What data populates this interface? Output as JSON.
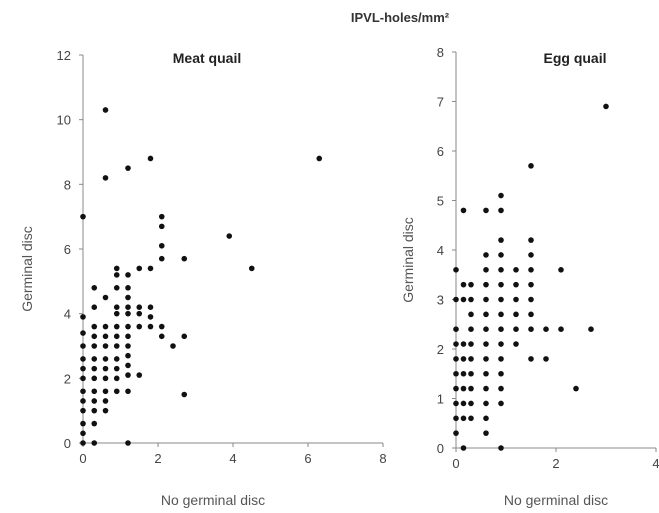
{
  "figure": {
    "title": "IPVL-holes/mm²"
  },
  "chart_data": [
    {
      "type": "scatter",
      "title": "Meat quail",
      "xlabel": "No germinal disc",
      "ylabel": "Germinal disc",
      "xlim": [
        0,
        8
      ],
      "ylim": [
        0,
        12
      ],
      "xticks": [
        0,
        2,
        4,
        6,
        8
      ],
      "yticks": [
        0,
        2,
        4,
        6,
        8,
        10,
        12
      ],
      "grid": false,
      "marker_color": "#111111",
      "points": [
        [
          0,
          0
        ],
        [
          0,
          0.3
        ],
        [
          0,
          0.6
        ],
        [
          0,
          1
        ],
        [
          0,
          1.3
        ],
        [
          0,
          1.6
        ],
        [
          0,
          2
        ],
        [
          0,
          2.3
        ],
        [
          0,
          2.6
        ],
        [
          0,
          3
        ],
        [
          0,
          3.4
        ],
        [
          0,
          3.9
        ],
        [
          0,
          7
        ],
        [
          0.3,
          0
        ],
        [
          0.3,
          0.6
        ],
        [
          0.3,
          1
        ],
        [
          0.3,
          1.3
        ],
        [
          0.3,
          1.6
        ],
        [
          0.3,
          2
        ],
        [
          0.3,
          2.3
        ],
        [
          0.3,
          2.6
        ],
        [
          0.3,
          3
        ],
        [
          0.3,
          3.3
        ],
        [
          0.3,
          3.6
        ],
        [
          0.3,
          4.2
        ],
        [
          0.3,
          4.8
        ],
        [
          0.6,
          1
        ],
        [
          0.6,
          1.3
        ],
        [
          0.6,
          1.6
        ],
        [
          0.6,
          2
        ],
        [
          0.6,
          2.3
        ],
        [
          0.6,
          2.6
        ],
        [
          0.6,
          3
        ],
        [
          0.6,
          3.3
        ],
        [
          0.6,
          3.6
        ],
        [
          0.6,
          4.5
        ],
        [
          0.6,
          8.2
        ],
        [
          0.6,
          10.3
        ],
        [
          0.9,
          1.6
        ],
        [
          0.9,
          2
        ],
        [
          0.9,
          2.3
        ],
        [
          0.9,
          2.6
        ],
        [
          0.9,
          3
        ],
        [
          0.9,
          3.3
        ],
        [
          0.9,
          3.6
        ],
        [
          0.9,
          4
        ],
        [
          0.9,
          4.2
        ],
        [
          0.9,
          4.8
        ],
        [
          0.9,
          5.2
        ],
        [
          0.9,
          5.4
        ],
        [
          1.2,
          0
        ],
        [
          1.2,
          1.6
        ],
        [
          1.2,
          2.1
        ],
        [
          1.2,
          2.4
        ],
        [
          1.2,
          2.7
        ],
        [
          1.2,
          3
        ],
        [
          1.2,
          3.3
        ],
        [
          1.2,
          3.6
        ],
        [
          1.2,
          4
        ],
        [
          1.2,
          4.2
        ],
        [
          1.2,
          4.5
        ],
        [
          1.2,
          4.8
        ],
        [
          1.2,
          5.2
        ],
        [
          1.2,
          8.5
        ],
        [
          1.5,
          2.1
        ],
        [
          1.5,
          3.6
        ],
        [
          1.5,
          4
        ],
        [
          1.5,
          4.2
        ],
        [
          1.5,
          5.4
        ],
        [
          1.8,
          3.6
        ],
        [
          1.8,
          3.9
        ],
        [
          1.8,
          4.2
        ],
        [
          1.8,
          5.4
        ],
        [
          1.8,
          8.8
        ],
        [
          2.1,
          3.3
        ],
        [
          2.1,
          3.6
        ],
        [
          2.1,
          5.7
        ],
        [
          2.1,
          6.1
        ],
        [
          2.1,
          6.7
        ],
        [
          2.1,
          7
        ],
        [
          2.4,
          3
        ],
        [
          2.7,
          1.5
        ],
        [
          2.7,
          3.3
        ],
        [
          2.7,
          5.7
        ],
        [
          3.9,
          6.4
        ],
        [
          4.5,
          5.4
        ],
        [
          6.3,
          8.8
        ]
      ]
    },
    {
      "type": "scatter",
      "title": "Egg quail",
      "xlabel": "No germinal disc",
      "ylabel": "Germinal disc",
      "xlim": [
        0,
        4
      ],
      "ylim": [
        0,
        8
      ],
      "xticks": [
        0,
        2,
        4
      ],
      "yticks": [
        0,
        1,
        2,
        3,
        4,
        5,
        6,
        7,
        8
      ],
      "grid": false,
      "marker_color": "#111111",
      "points": [
        [
          0,
          0.3
        ],
        [
          0,
          0.6
        ],
        [
          0,
          0.9
        ],
        [
          0,
          1.2
        ],
        [
          0,
          1.5
        ],
        [
          0,
          1.8
        ],
        [
          0,
          2.1
        ],
        [
          0,
          2.4
        ],
        [
          0,
          3
        ],
        [
          0,
          3.6
        ],
        [
          0.15,
          0
        ],
        [
          0.15,
          0.6
        ],
        [
          0.15,
          0.9
        ],
        [
          0.15,
          1.2
        ],
        [
          0.15,
          1.5
        ],
        [
          0.15,
          1.8
        ],
        [
          0.15,
          2.1
        ],
        [
          0.15,
          3
        ],
        [
          0.15,
          3.3
        ],
        [
          0.15,
          4.8
        ],
        [
          0.3,
          0.6
        ],
        [
          0.3,
          0.9
        ],
        [
          0.3,
          1.2
        ],
        [
          0.3,
          1.5
        ],
        [
          0.3,
          1.8
        ],
        [
          0.3,
          2.1
        ],
        [
          0.3,
          2.4
        ],
        [
          0.3,
          2.7
        ],
        [
          0.3,
          3
        ],
        [
          0.3,
          3.3
        ],
        [
          0.6,
          0.3
        ],
        [
          0.6,
          0.6
        ],
        [
          0.6,
          0.9
        ],
        [
          0.6,
          1.2
        ],
        [
          0.6,
          1.5
        ],
        [
          0.6,
          1.8
        ],
        [
          0.6,
          2.1
        ],
        [
          0.6,
          2.4
        ],
        [
          0.6,
          2.7
        ],
        [
          0.6,
          3
        ],
        [
          0.6,
          3.3
        ],
        [
          0.6,
          3.6
        ],
        [
          0.6,
          3.9
        ],
        [
          0.6,
          4.8
        ],
        [
          0.9,
          0
        ],
        [
          0.9,
          0.9
        ],
        [
          0.9,
          1.2
        ],
        [
          0.9,
          1.5
        ],
        [
          0.9,
          1.8
        ],
        [
          0.9,
          2.1
        ],
        [
          0.9,
          2.4
        ],
        [
          0.9,
          2.7
        ],
        [
          0.9,
          3
        ],
        [
          0.9,
          3.3
        ],
        [
          0.9,
          3.6
        ],
        [
          0.9,
          3.9
        ],
        [
          0.9,
          4.2
        ],
        [
          0.9,
          4.8
        ],
        [
          0.9,
          5.1
        ],
        [
          1.2,
          2.1
        ],
        [
          1.2,
          2.4
        ],
        [
          1.2,
          2.7
        ],
        [
          1.2,
          3
        ],
        [
          1.2,
          3.3
        ],
        [
          1.2,
          3.6
        ],
        [
          1.5,
          1.8
        ],
        [
          1.5,
          2.4
        ],
        [
          1.5,
          2.7
        ],
        [
          1.5,
          3
        ],
        [
          1.5,
          3.3
        ],
        [
          1.5,
          3.6
        ],
        [
          1.5,
          3.9
        ],
        [
          1.5,
          4.2
        ],
        [
          1.5,
          5.7
        ],
        [
          1.8,
          1.8
        ],
        [
          1.8,
          2.4
        ],
        [
          2.1,
          2.4
        ],
        [
          2.1,
          3.6
        ],
        [
          2.4,
          1.2
        ],
        [
          2.7,
          2.4
        ],
        [
          3,
          6.9
        ]
      ]
    }
  ]
}
